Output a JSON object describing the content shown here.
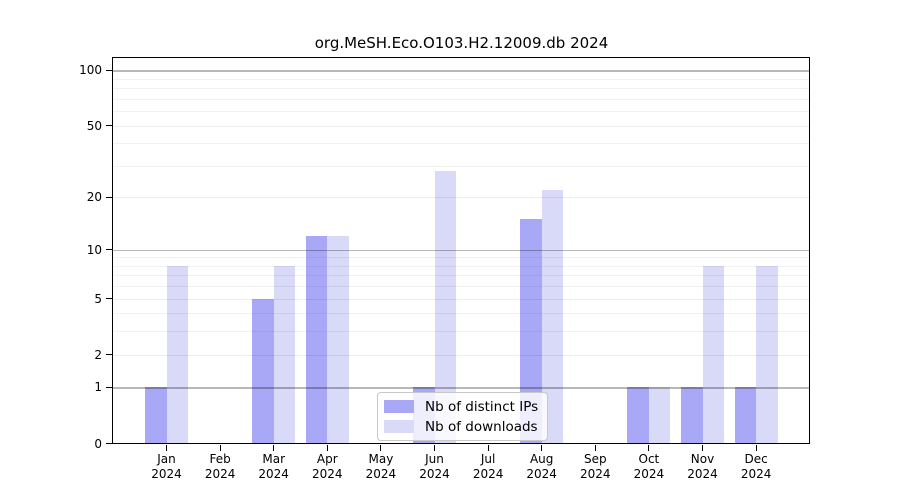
{
  "chart_data": {
    "type": "bar",
    "title": "org.MeSH.Eco.O103.H2.12009.db 2024",
    "categories": [
      "Jan",
      "Feb",
      "Mar",
      "Apr",
      "May",
      "Jun",
      "Jul",
      "Aug",
      "Sep",
      "Oct",
      "Nov",
      "Dec"
    ],
    "category_year": "2024",
    "series": [
      {
        "name": "Nb of distinct IPs",
        "color": "#a8a8f6",
        "values": [
          1,
          0,
          5,
          12,
          0,
          1,
          0,
          15,
          0,
          1,
          1,
          1
        ]
      },
      {
        "name": "Nb of downloads",
        "color": "#d9d9f8",
        "values": [
          8,
          0,
          8,
          12,
          0,
          28,
          0,
          22,
          0,
          1,
          8,
          8
        ]
      }
    ],
    "y_axis": {
      "scale": "log10(value+1)",
      "ticks": [
        0,
        1,
        2,
        5,
        10,
        20,
        50,
        100
      ],
      "emphasized_gridlines": [
        1,
        10,
        100
      ],
      "major_gridlines": [
        2,
        5,
        20,
        50
      ],
      "minor_gridlines": [
        3,
        4,
        6,
        7,
        8,
        9,
        30,
        40,
        60,
        70,
        80,
        90
      ],
      "ylim": [
        0,
        116
      ]
    },
    "xlabel": "",
    "ylabel": "",
    "grid": true,
    "legend_position": "bottom-center",
    "colors": {
      "background": "#ffffff",
      "frame": "#000000",
      "grid_emphasized": "rgba(0,0,0,0.28)",
      "grid_major": "rgba(0,0,0,0.07)",
      "grid_minor": "rgba(0,0,0,0.05)"
    }
  }
}
